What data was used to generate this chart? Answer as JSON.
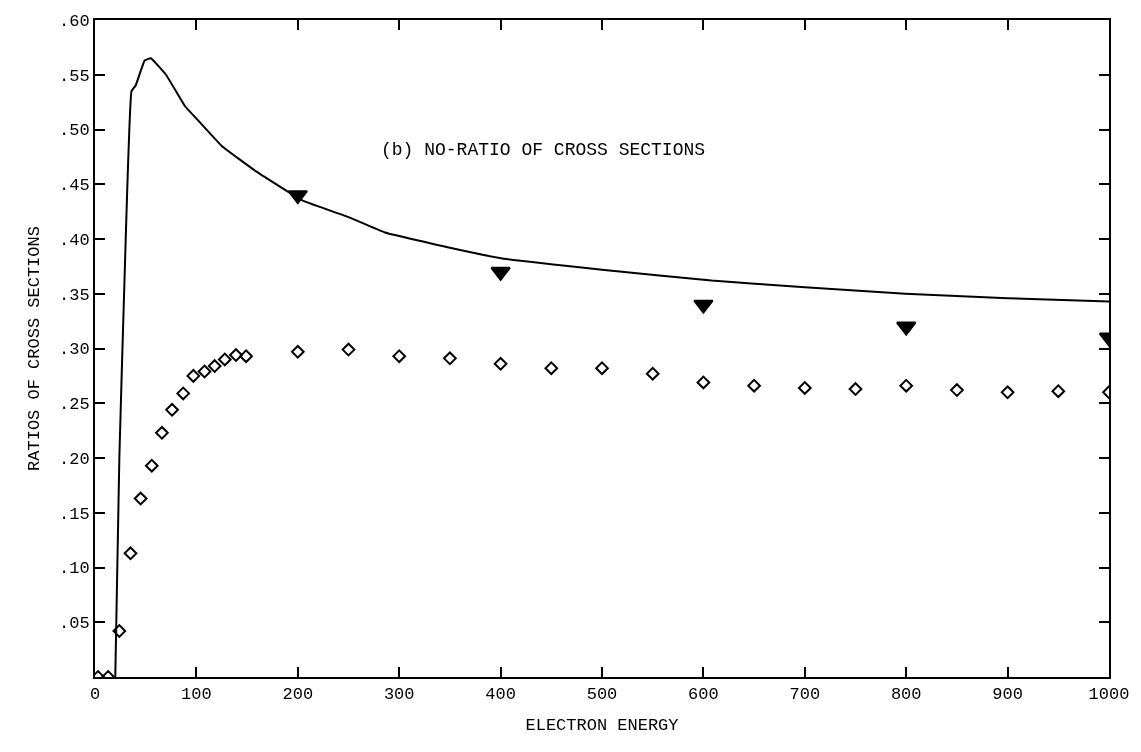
{
  "chart_data": {
    "type": "line",
    "xlabel": "ELECTRON ENERGY",
    "ylabel": "RATIOS OF CROSS SECTIONS",
    "annotations": [
      "(b) NO-RATIO OF CROSS SECTIONS"
    ],
    "xlim": [
      0,
      1000
    ],
    "xticks": [
      0,
      100,
      200,
      300,
      400,
      500,
      600,
      700,
      800,
      900,
      1000
    ],
    "ylim": [
      0,
      0.6
    ],
    "yticks": [
      {
        "value": 0.05,
        "label": ".05"
      },
      {
        "value": 0.1,
        "label": ".10"
      },
      {
        "value": 0.15,
        "label": ".15"
      },
      {
        "value": 0.2,
        "label": ".20"
      },
      {
        "value": 0.25,
        "label": ".25"
      },
      {
        "value": 0.3,
        "label": ".30"
      },
      {
        "value": 0.35,
        "label": ".35"
      },
      {
        "value": 0.4,
        "label": ".40"
      },
      {
        "value": 0.45,
        "label": ".45"
      },
      {
        "value": 0.5,
        "label": ".50"
      },
      {
        "value": 0.55,
        "label": ".55"
      },
      {
        "value": 0.6,
        "label": ".60"
      }
    ],
    "grid": false,
    "legend": false,
    "series": [
      {
        "color": "#000000",
        "marker": "none",
        "line_style": "solid",
        "x": [
          20,
          24,
          29,
          36,
          40,
          49,
          55,
          70,
          89,
          100,
          125,
          160,
          205,
          250,
          286,
          350,
          403,
          500,
          608,
          700,
          799,
          900,
          1000
        ],
        "values": [
          0,
          0.2,
          0.36,
          0.535,
          0.54,
          0.563,
          0.565,
          0.55,
          0.521,
          0.51,
          0.485,
          0.461,
          0.435,
          0.42,
          0.406,
          0.392,
          0.382,
          0.372,
          0.362,
          0.356,
          0.35,
          0.346,
          0.343
        ]
      },
      {
        "type": "scatter",
        "color": "#000000",
        "marker": "triangle",
        "x": [
          200,
          400,
          600,
          800,
          1000
        ],
        "values": [
          0.44,
          0.37,
          0.34,
          0.32,
          0.31
        ]
      },
      {
        "type": "scatter",
        "color": "#000000",
        "marker": "diamond",
        "x": [
          3,
          13,
          24,
          35,
          45,
          56,
          66,
          76,
          87,
          97,
          108,
          118,
          128,
          139,
          149,
          200,
          250,
          300,
          350,
          400,
          450,
          500,
          550,
          600,
          650,
          700,
          750,
          800,
          850,
          900,
          950,
          1000
        ],
        "values": [
          0,
          0,
          0.042,
          0.113,
          0.163,
          0.193,
          0.223,
          0.244,
          0.259,
          0.275,
          0.279,
          0.284,
          0.29,
          0.294,
          0.293,
          0.297,
          0.299,
          0.293,
          0.291,
          0.286,
          0.282,
          0.282,
          0.277,
          0.269,
          0.266,
          0.264,
          0.263,
          0.266,
          0.262,
          0.26,
          0.261,
          0.26
        ]
      }
    ]
  }
}
